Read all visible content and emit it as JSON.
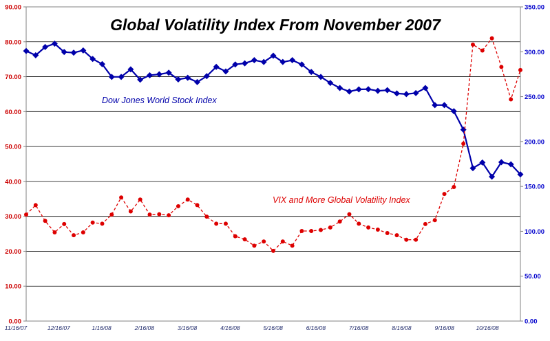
{
  "chart_data": {
    "type": "line",
    "title": "Global Volatility Index From November 2007",
    "xlabel": "",
    "ylabel_left": "",
    "ylabel_right": "",
    "x_tick_labels": [
      "11/16/07",
      "12/16/07",
      "1/16/08",
      "2/16/08",
      "3/16/08",
      "4/16/08",
      "5/16/08",
      "6/16/08",
      "7/16/08",
      "8/16/08",
      "9/16/08",
      "10/16/08"
    ],
    "left_axis": {
      "min": 0,
      "max": 90,
      "step": 10,
      "color": "#cc0000",
      "tick_labels": [
        "0.00",
        "10.00",
        "20.00",
        "30.00",
        "40.00",
        "50.00",
        "60.00",
        "70.00",
        "80.00",
        "90.00"
      ]
    },
    "right_axis": {
      "min": 0,
      "max": 350,
      "step": 50,
      "color": "#0000cc",
      "tick_labels": [
        "0.00",
        "50.00",
        "100.00",
        "150.00",
        "200.00",
        "250.00",
        "300.00",
        "350.00"
      ]
    },
    "grid": {
      "horizontal": true,
      "vertical": false
    },
    "series": [
      {
        "name": "Dow Jones World Stock Index",
        "axis": "right",
        "color": "#0000aa",
        "line_style": "solid",
        "marker": "diamond",
        "values": [
          300.9,
          296.1,
          305.3,
          309.0,
          299.7,
          299.0,
          301.5,
          292.0,
          286.2,
          272.0,
          272.0,
          280.4,
          268.9,
          273.8,
          274.9,
          276.7,
          269.2,
          271.0,
          266.2,
          272.8,
          283.2,
          278.1,
          285.9,
          287.1,
          290.6,
          288.6,
          295.6,
          288.6,
          290.6,
          285.9,
          277.5,
          272.0,
          265.3,
          259.6,
          255.7,
          258.1,
          258.3,
          256.5,
          257.2,
          253.6,
          252.8,
          254.0,
          259.6,
          240.6,
          240.6,
          233.8,
          213.2,
          170.3,
          176.6,
          160.8,
          177.0,
          174.6,
          163.4
        ]
      },
      {
        "name": "VIX and More Global Volatility Index",
        "axis": "left",
        "color": "#dd0000",
        "line_style": "dashed",
        "marker": "circle",
        "values": [
          30.5,
          33.2,
          28.7,
          25.4,
          27.8,
          24.6,
          25.4,
          28.2,
          27.9,
          30.5,
          35.4,
          31.4,
          34.8,
          30.5,
          30.6,
          30.3,
          32.9,
          34.8,
          33.2,
          29.9,
          27.9,
          27.9,
          24.3,
          23.4,
          21.6,
          22.8,
          20.1,
          22.8,
          21.6,
          25.8,
          25.8,
          26.1,
          26.8,
          28.5,
          30.6,
          27.9,
          26.8,
          26.2,
          25.2,
          24.6,
          23.3,
          23.3,
          27.8,
          28.9,
          36.4,
          38.4,
          50.8,
          79.2,
          77.5,
          81.0,
          72.8,
          63.5,
          71.9
        ]
      }
    ],
    "annotations": [
      {
        "text": "Dow Jones World Stock Index",
        "color": "#0000aa"
      },
      {
        "text": "VIX and More Global Volatility Index",
        "color": "#dd0000"
      }
    ]
  }
}
